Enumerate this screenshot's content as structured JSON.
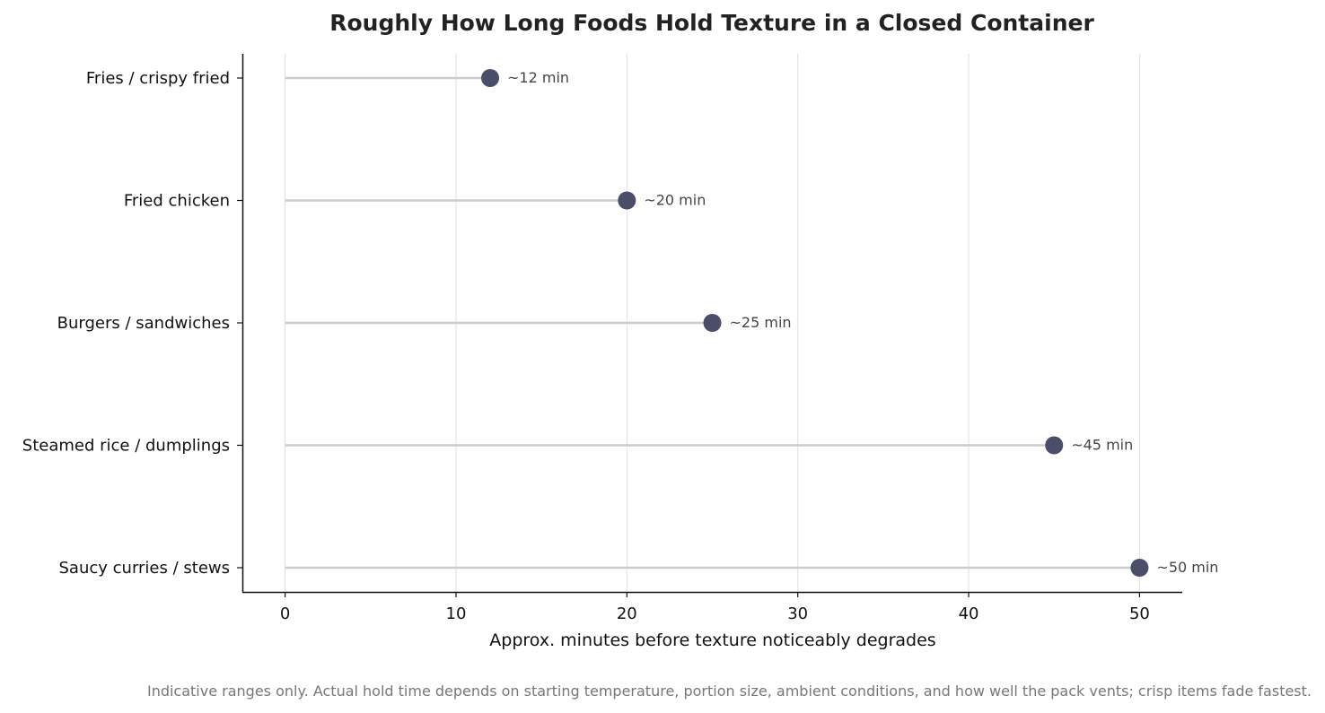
{
  "chart_data": {
    "type": "lollipop",
    "title": "Roughly How Long Foods Hold Texture in a Closed Container",
    "xlabel": "Approx. minutes before texture noticeably degrades",
    "ylabel": "",
    "xlim": [
      -2.5,
      52.5
    ],
    "xticks": [
      0,
      10,
      20,
      30,
      40,
      50
    ],
    "grid": "vertical",
    "categories": [
      "Fries / crispy fried",
      "Fried chicken",
      "Burgers / sandwiches",
      "Steamed rice / dumplings",
      "Saucy curries / stews"
    ],
    "values": [
      12,
      20,
      25,
      45,
      50
    ],
    "value_labels": [
      "~12 min",
      "~20 min",
      "~25 min",
      "~45 min",
      "~50 min"
    ],
    "colors": {
      "marker": "#4a4e69",
      "stem": "#cccccc",
      "grid": "#e0e0e0",
      "axis": "#111111"
    }
  },
  "footnote": "Indicative ranges only. Actual hold time depends on starting temperature, portion size, ambient conditions, and how well the pack vents; crisp items fade fastest."
}
